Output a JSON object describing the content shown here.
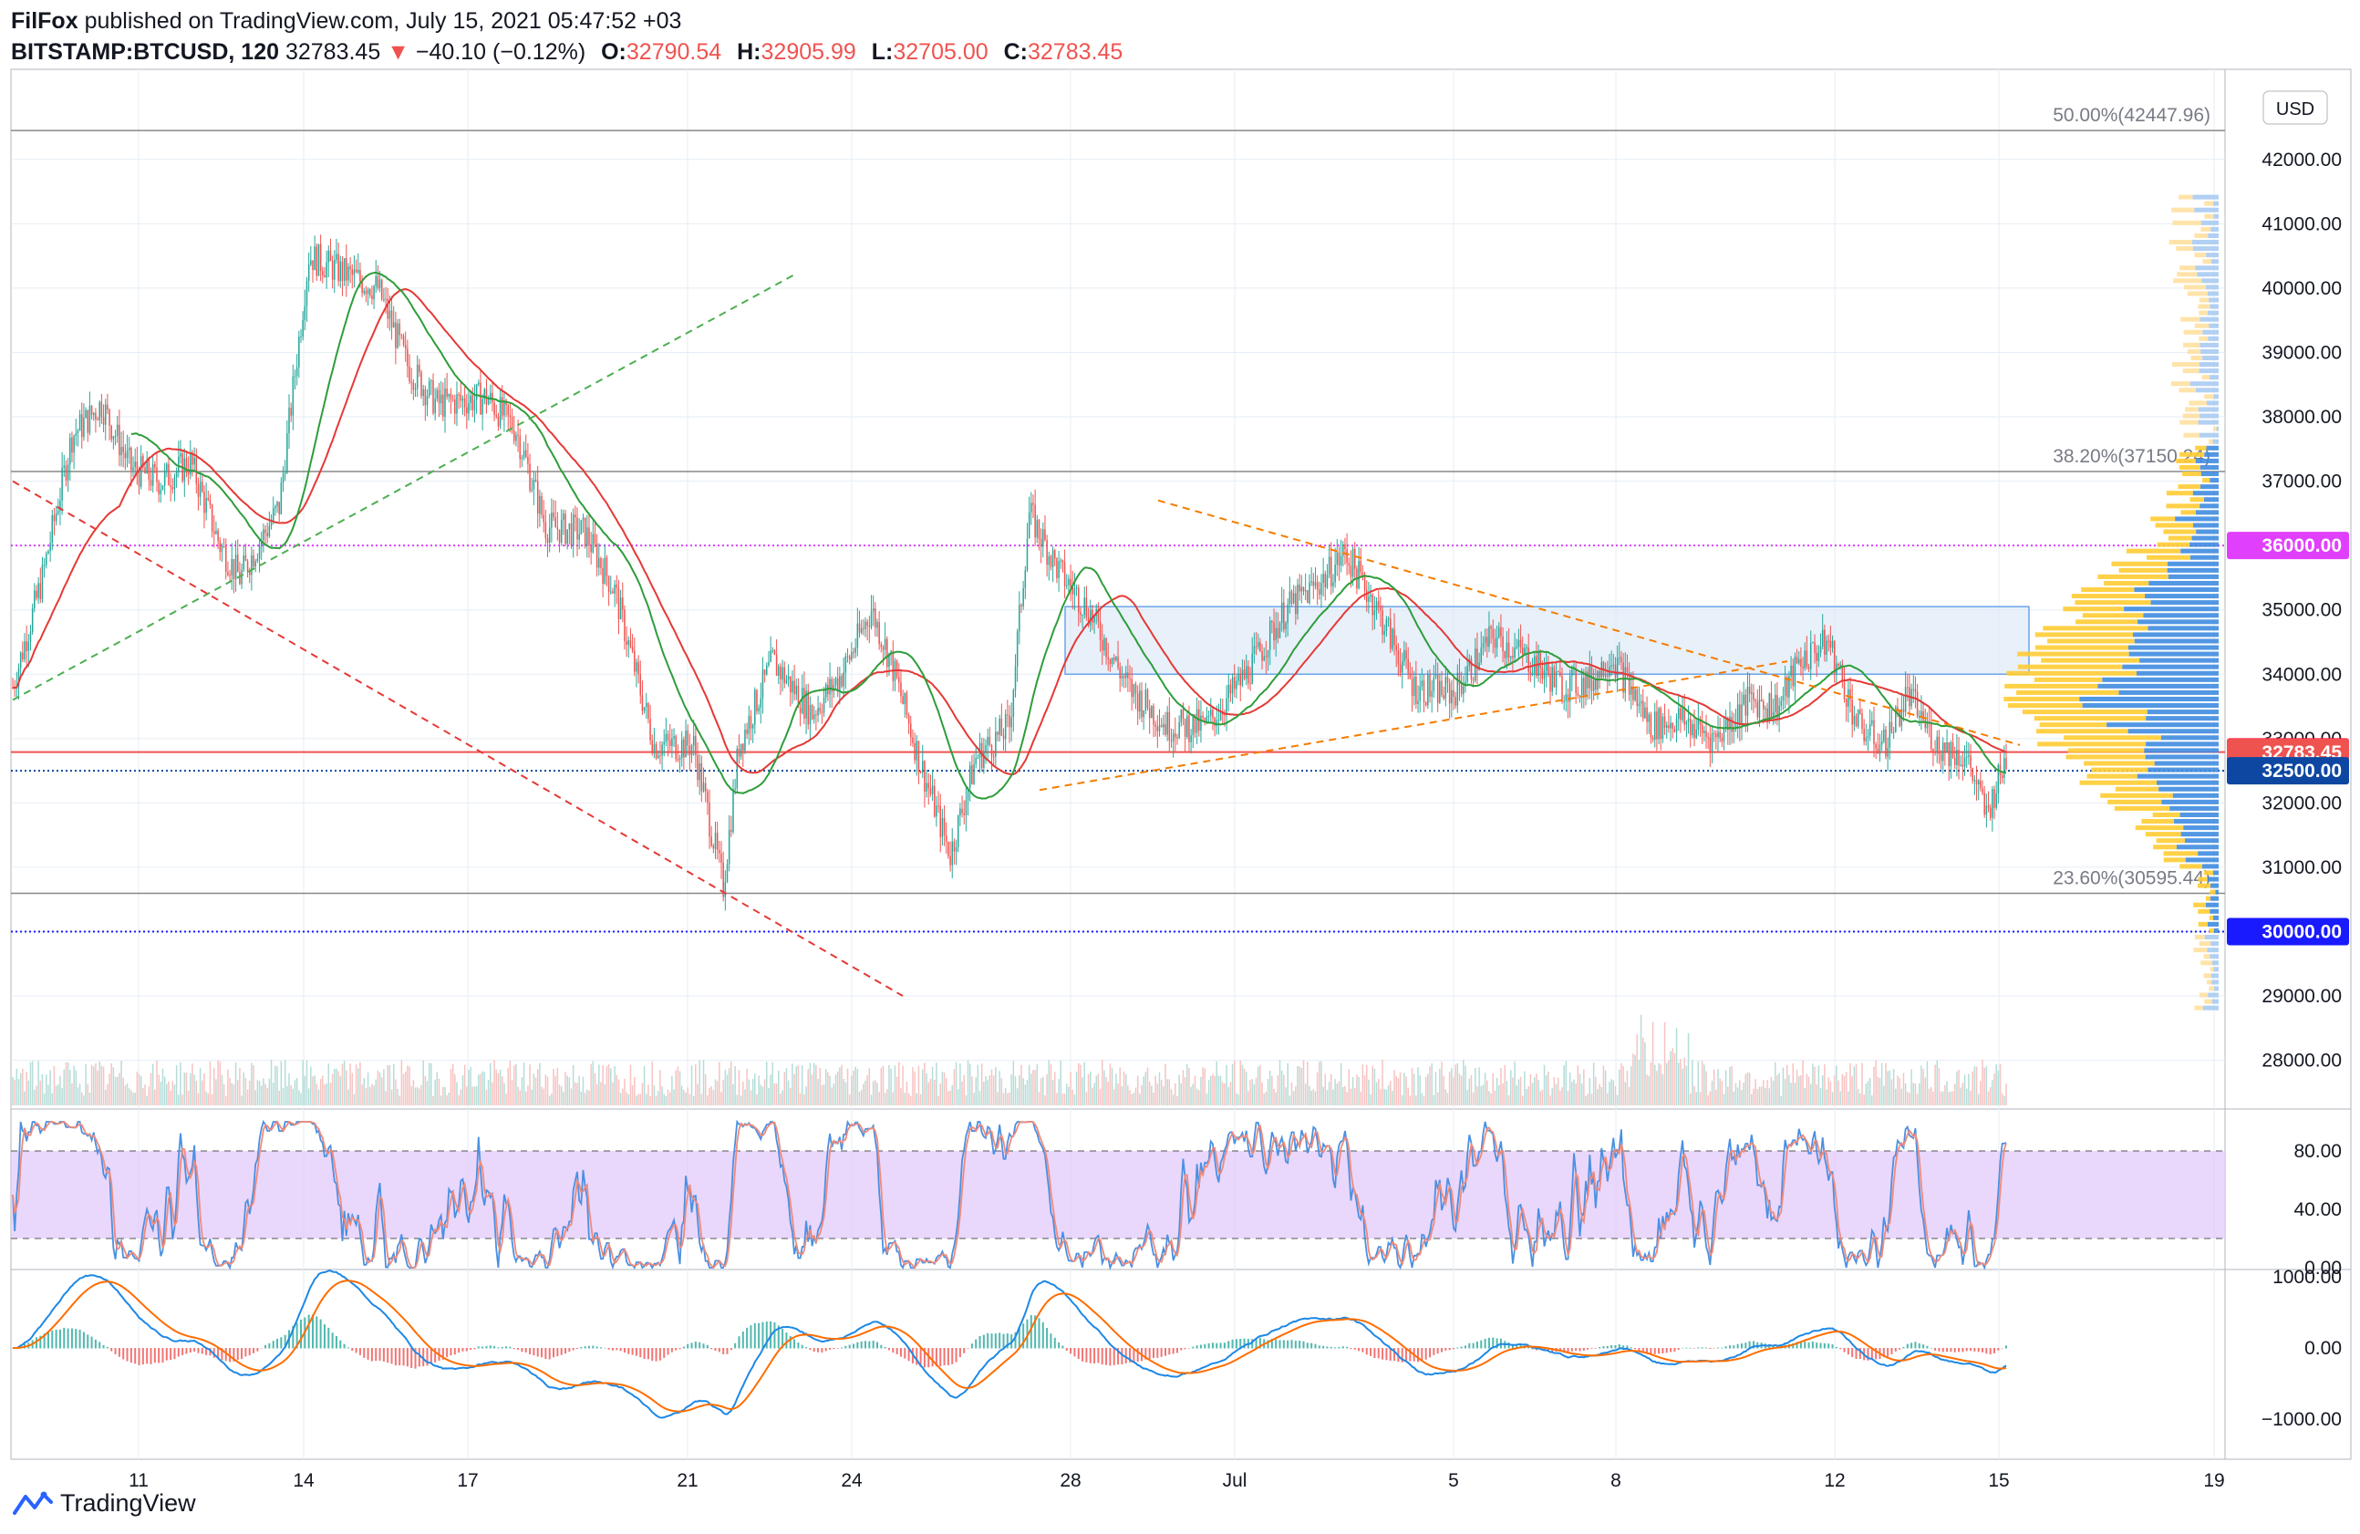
{
  "header": {
    "author": "FilFox",
    "published": "published on TradingView.com, July 15, 2021 05:47:52 +03",
    "symbol": "BITSTAMP:BTCUSD, 120",
    "last": "32783.45",
    "change": "−40.10 (−0.12%)",
    "open_label": "O:",
    "open": "32790.54",
    "high_label": "H:",
    "high": "32905.99",
    "low_label": "L:",
    "low": "32705.00",
    "close_label": "C:",
    "close": "32783.45",
    "down_arrow": "▼"
  },
  "footer": {
    "brand": "TradingView"
  },
  "currency_button": "USD",
  "colors": {
    "up": "#26a69a",
    "down": "#ef5350",
    "grid": "#e6edf5",
    "axis_text": "#131722",
    "ma_red": "#e53935",
    "ma_green": "#2e9d3a",
    "fib": "#888888",
    "magenta": "#e040fb",
    "blue_dotted": "#1a237e",
    "orange_trend": "#f57c00",
    "green_trend": "#4caf50",
    "red_trend": "#e53935",
    "zone": "#dbe8f8",
    "vp_up": "#ffcc33",
    "vp_down": "#3f8ce0",
    "stoch_k": "#4a90e2",
    "stoch_d": "#f08a7a",
    "stoch_band": "#e1c6fb",
    "macd": "#1e88e5",
    "signal": "#ff6d00"
  },
  "chart_data": {
    "type": "candlestick",
    "symbol": "BITSTAMP:BTCUSD",
    "interval": "120",
    "x_ticks": [
      "11",
      "14",
      "17",
      "21",
      "24",
      "28",
      "Jul",
      "5",
      "8",
      "12",
      "15",
      "19"
    ],
    "price_axis": [
      "42000.00",
      "41000.00",
      "40000.00",
      "39000.00",
      "38000.00",
      "37000.00",
      "36000.00",
      "35000.00",
      "34000.00",
      "33000.00",
      "32000.00",
      "31000.00",
      "30000.00",
      "29000.00",
      "28000.00"
    ],
    "ylim": [
      27300,
      43400
    ],
    "path_points": [
      [
        0,
        33800
      ],
      [
        15,
        35500
      ],
      [
        30,
        37700
      ],
      [
        45,
        38200
      ],
      [
        60,
        37200
      ],
      [
        75,
        37000
      ],
      [
        90,
        37300
      ],
      [
        105,
        36000
      ],
      [
        115,
        35500
      ],
      [
        135,
        36600
      ],
      [
        150,
        40500
      ],
      [
        170,
        40200
      ],
      [
        185,
        40000
      ],
      [
        200,
        38800
      ],
      [
        215,
        38200
      ],
      [
        240,
        38300
      ],
      [
        255,
        37800
      ],
      [
        270,
        36300
      ],
      [
        290,
        36200
      ],
      [
        305,
        35300
      ],
      [
        325,
        32900
      ],
      [
        345,
        32900
      ],
      [
        360,
        30700
      ],
      [
        368,
        32900
      ],
      [
        385,
        34200
      ],
      [
        405,
        33400
      ],
      [
        420,
        34000
      ],
      [
        435,
        35000
      ],
      [
        445,
        34200
      ],
      [
        460,
        32600
      ],
      [
        475,
        31200
      ],
      [
        488,
        32700
      ],
      [
        505,
        33200
      ],
      [
        515,
        36500
      ],
      [
        530,
        35600
      ],
      [
        545,
        35000
      ],
      [
        565,
        33800
      ],
      [
        585,
        33200
      ],
      [
        605,
        33200
      ],
      [
        625,
        34000
      ],
      [
        645,
        35000
      ],
      [
        665,
        35500
      ],
      [
        675,
        35900
      ],
      [
        690,
        35100
      ],
      [
        710,
        33800
      ],
      [
        730,
        33700
      ],
      [
        750,
        34600
      ],
      [
        770,
        34200
      ],
      [
        785,
        33800
      ],
      [
        800,
        33900
      ],
      [
        810,
        34300
      ],
      [
        830,
        33200
      ],
      [
        845,
        33300
      ],
      [
        862,
        33000
      ],
      [
        880,
        33600
      ],
      [
        895,
        33500
      ],
      [
        905,
        34200
      ],
      [
        920,
        34500
      ],
      [
        935,
        33200
      ],
      [
        948,
        32900
      ],
      [
        960,
        33700
      ],
      [
        975,
        32900
      ],
      [
        990,
        32700
      ],
      [
        1000,
        31800
      ],
      [
        1010,
        32700
      ]
    ],
    "fibonacci": [
      {
        "level": "50.00%",
        "price": 42447.96,
        "label": "50.00%(42447.96)"
      },
      {
        "level": "38.20%",
        "price": 37150.24,
        "label": "38.20%(37150.24)"
      },
      {
        "level": "23.60%",
        "price": 30595.44,
        "label": "23.60%(30595.44)"
      }
    ],
    "price_labels": [
      {
        "price": 36000,
        "text": "36000.00",
        "color": "#e040fb"
      },
      {
        "price": 32794.1,
        "text": "32794.10",
        "color": "#ff1744"
      },
      {
        "price": 32783.45,
        "text": "32783.45",
        "color": "#ef5350"
      },
      {
        "price": 32500,
        "text": "32500.00",
        "color": "#0d47a1"
      },
      {
        "price": 30000,
        "text": "30000.00",
        "color": "#1a1aff"
      }
    ],
    "stoch": {
      "axis": [
        "80.00",
        "40.00",
        "0.00"
      ],
      "upper": 80,
      "lower": 20,
      "range": [
        0,
        100
      ]
    },
    "macd": {
      "axis": [
        "1000.00",
        "0.00",
        "−1000.00"
      ],
      "range": [
        -1000,
        1000
      ]
    }
  }
}
